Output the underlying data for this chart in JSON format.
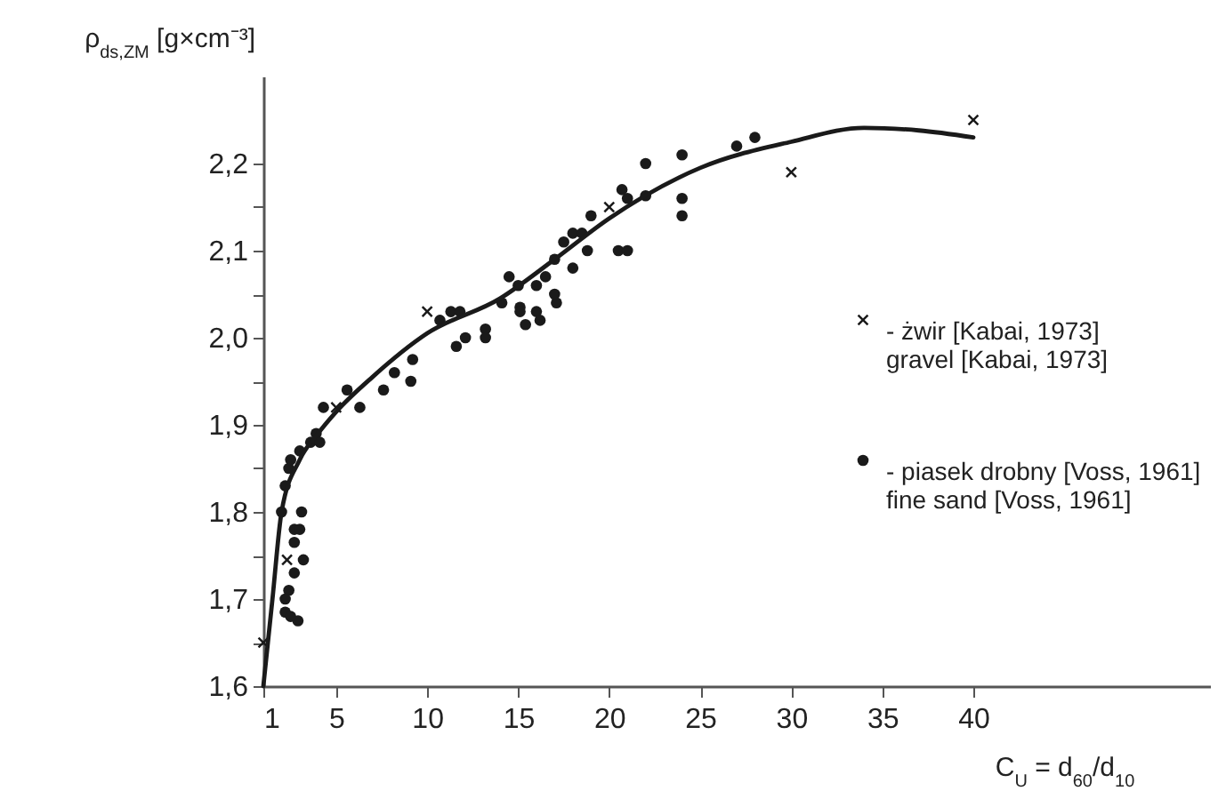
{
  "chart_data": {
    "type": "scatter",
    "xlabel": "C$_{U}$ = d$_{60}$/d$_{10}$",
    "ylabel": "ρ$_{ds,ZM}$ [g×cm⁻³]",
    "xlim": [
      1,
      53
    ],
    "ylim": [
      1.6,
      2.3
    ],
    "xticks": [
      1,
      5,
      10,
      15,
      20,
      25,
      30,
      35,
      40
    ],
    "yticks": [
      {
        "value": 1.6,
        "label": "1,6"
      },
      {
        "value": 1.65,
        "label": null
      },
      {
        "value": 1.7,
        "label": "1,7"
      },
      {
        "value": 1.75,
        "label": null
      },
      {
        "value": 1.8,
        "label": "1,8"
      },
      {
        "value": 1.85,
        "label": null
      },
      {
        "value": 1.9,
        "label": "1,9"
      },
      {
        "value": 1.95,
        "label": null
      },
      {
        "value": 2.0,
        "label": "2,0"
      },
      {
        "value": 2.05,
        "label": null
      },
      {
        "value": 2.1,
        "label": "2,1"
      },
      {
        "value": 2.15,
        "label": null
      },
      {
        "value": 2.2,
        "label": "2,2"
      }
    ],
    "grid": false,
    "legend": "right",
    "series": [
      {
        "name": "- żwir [Kabai, 1973]\ngravel [Kabai, 1973]",
        "color": "#1a1a1a",
        "marker": "cross",
        "x": [
          1,
          2.3,
          5,
          10,
          20,
          30,
          40
        ],
        "values": [
          1.65,
          1.745,
          1.92,
          2.03,
          2.15,
          2.19,
          2.25
        ]
      },
      {
        "name": "- piasek drobny [Voss, 1961]\nfine sand [Voss, 1961]",
        "color": "#1a1a1a",
        "marker": "circle",
        "x": [
          2.0,
          3.1,
          2.7,
          3.0,
          2.7,
          3.2,
          2.7,
          2.4,
          2.2,
          2.2,
          2.9,
          2.5,
          2.2,
          2.4,
          2.5,
          3.0,
          3.6,
          3.9,
          4.1,
          4.3,
          5.6,
          6.3,
          7.6,
          8.2,
          9.1,
          9.2,
          10.7,
          11.3,
          11.8,
          13.2,
          13.2,
          12.1,
          11.6,
          14.1,
          15.1,
          15.1,
          15.4,
          16.0,
          16.2,
          17.1,
          14.5,
          15.0,
          16.0,
          16.5,
          17.0,
          17.5,
          18.0,
          18.0,
          18.5,
          17.0,
          18.8,
          19.0,
          20.5,
          21.0,
          20.7,
          21.0,
          22.0,
          22.0,
          24.0,
          24.0,
          24.0,
          27.0,
          28.0
        ],
        "values": [
          1.8,
          1.8,
          1.78,
          1.78,
          1.765,
          1.745,
          1.73,
          1.71,
          1.7,
          1.685,
          1.675,
          1.68,
          1.83,
          1.85,
          1.86,
          1.87,
          1.88,
          1.89,
          1.88,
          1.92,
          1.94,
          1.92,
          1.94,
          1.96,
          1.95,
          1.975,
          2.02,
          2.03,
          2.03,
          2.01,
          2.0,
          2.0,
          1.99,
          2.04,
          2.035,
          2.03,
          2.015,
          2.03,
          2.02,
          2.04,
          2.07,
          2.06,
          2.06,
          2.07,
          2.09,
          2.11,
          2.08,
          2.12,
          2.12,
          2.05,
          2.1,
          2.14,
          2.1,
          2.1,
          2.17,
          2.16,
          2.2,
          2.163,
          2.21,
          2.16,
          2.14,
          2.22,
          2.23
        ]
      },
      {
        "type": "line",
        "color": "#1a1a1a",
        "x": [
          1,
          1.5,
          2,
          3,
          4,
          5,
          7,
          10,
          14,
          17,
          20,
          25,
          30,
          34,
          37,
          40
        ],
        "values": [
          1.6,
          1.7,
          1.8,
          1.86,
          1.89,
          1.915,
          1.955,
          2.005,
          2.045,
          2.09,
          2.137,
          2.195,
          2.225,
          2.241,
          2.238,
          2.23
        ]
      }
    ]
  }
}
